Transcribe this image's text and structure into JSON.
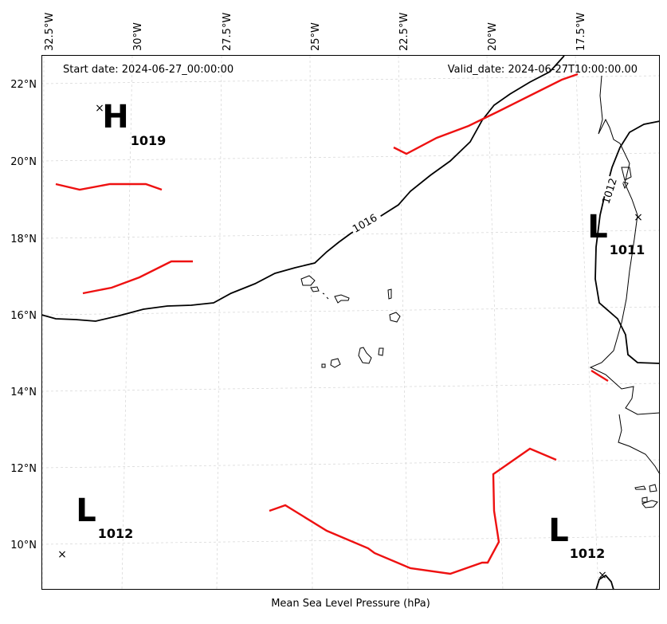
{
  "header": {
    "start_date": "Start date: 2024-06-27_00:00:00",
    "valid_date": "Valid_date: 2024-06-27T10:00:00.00"
  },
  "footer": {
    "xlabel": "Mean Sea Level Pressure (hPa)"
  },
  "axes": {
    "top_labels": [
      "32.5°W",
      "30°W",
      "27.5°W",
      "25°W",
      "22.5°W",
      "20°W",
      "17.5°W"
    ],
    "left_labels": [
      "22°N",
      "20°N",
      "18°N",
      "16°N",
      "14°N",
      "12°N",
      "10°N"
    ]
  },
  "pressure_centers": [
    {
      "type": "H",
      "value": "1019"
    },
    {
      "type": "L",
      "value": "1011"
    },
    {
      "type": "L",
      "value": "1012"
    },
    {
      "type": "L",
      "value": "1012"
    }
  ],
  "isobars": [
    {
      "label": "1016"
    },
    {
      "label": "1012"
    }
  ],
  "colors": {
    "isobar": "#000000",
    "front": "#ee1111",
    "grid": "#cccccc",
    "coast": "#000000"
  }
}
